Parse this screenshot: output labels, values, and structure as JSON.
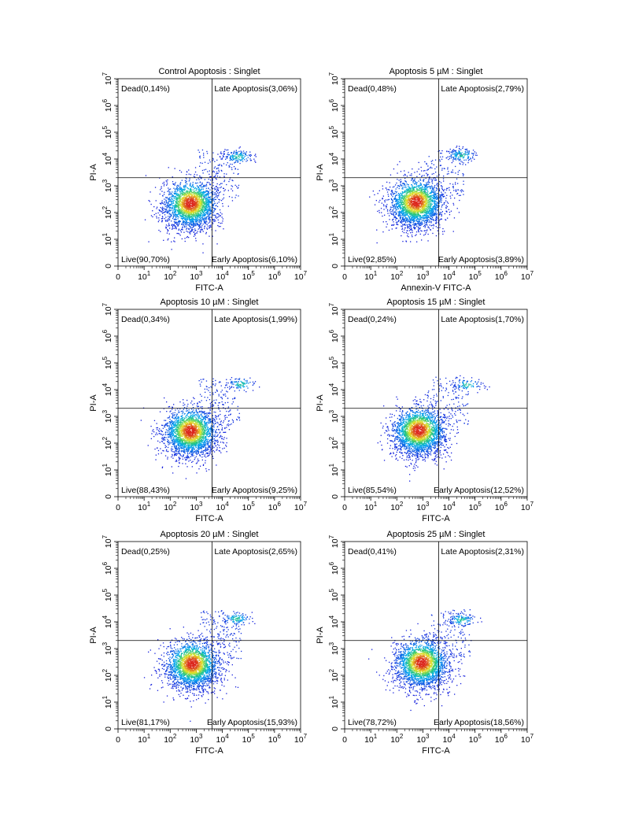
{
  "chart_data": [
    {
      "type": "scatter",
      "title": "Control Apoptosis : Singlet",
      "xlabel": "FITC-A",
      "ylabel": "PI-A",
      "xscale": "biexponential (log)",
      "yscale": "biexponential (log)",
      "xlim": [
        0,
        10000000
      ],
      "ylim": [
        0,
        10000000
      ],
      "x_ticks": [
        "0",
        "10",
        "10",
        "10",
        "10",
        "10",
        "10",
        "10"
      ],
      "x_tick_exponents": [
        "",
        "1",
        "2",
        "3",
        "4",
        "5",
        "6",
        "7"
      ],
      "y_ticks": [
        "0",
        "10",
        "10",
        "10",
        "10",
        "10",
        "10",
        "10"
      ],
      "y_tick_exponents": [
        "",
        "1",
        "2",
        "3",
        "4",
        "5",
        "6",
        "7"
      ],
      "gate": {
        "x": 4000,
        "y": 2000
      },
      "quadrants": {
        "top_left": "Dead(0,14%)",
        "top_right": "Late Apoptosis(3,06%)",
        "bottom_left": "Live(90,70%)",
        "bottom_right": "Early Apoptosis(6,10%)"
      },
      "population": {
        "live_center": [
          600,
          220
        ],
        "late_center": [
          40000,
          12000
        ],
        "late_fraction": 0.06
      },
      "colormap": "density: blue-cyan-green-yellow-red"
    },
    {
      "type": "scatter",
      "title": "Apoptosis 5 µM : Singlet",
      "xlabel": "Annexin-V FITC-A",
      "ylabel": "PI-A",
      "xscale": "biexponential (log)",
      "yscale": "biexponential (log)",
      "xlim": [
        0,
        10000000
      ],
      "ylim": [
        0,
        10000000
      ],
      "x_ticks": [
        "0",
        "10",
        "10",
        "10",
        "10",
        "10",
        "10",
        "10"
      ],
      "x_tick_exponents": [
        "",
        "1",
        "2",
        "3",
        "4",
        "5",
        "6",
        "7"
      ],
      "y_ticks": [
        "0",
        "10",
        "10",
        "10",
        "10",
        "10",
        "10",
        "10"
      ],
      "y_tick_exponents": [
        "",
        "1",
        "2",
        "3",
        "4",
        "5",
        "6",
        "7"
      ],
      "gate": {
        "x": 4000,
        "y": 2000
      },
      "quadrants": {
        "top_left": "Dead(0,48%)",
        "top_right": "Late Apoptosis(2,79%)",
        "bottom_left": "Live(92,85%)",
        "bottom_right": "Early Apoptosis(3,89%)"
      },
      "population": {
        "live_center": [
          550,
          250
        ],
        "late_center": [
          30000,
          14000
        ],
        "late_fraction": 0.05
      },
      "colormap": "density: blue-cyan-green-yellow-red"
    },
    {
      "type": "scatter",
      "title": "Apoptosis 10 µM : Singlet",
      "xlabel": "FITC-A",
      "ylabel": "PI-A",
      "xscale": "biexponential (log)",
      "yscale": "biexponential (log)",
      "xlim": [
        0,
        10000000
      ],
      "ylim": [
        0,
        10000000
      ],
      "x_ticks": [
        "0",
        "10",
        "10",
        "10",
        "10",
        "10",
        "10",
        "10"
      ],
      "x_tick_exponents": [
        "",
        "1",
        "2",
        "3",
        "4",
        "5",
        "6",
        "7"
      ],
      "y_ticks": [
        "0",
        "10",
        "10",
        "10",
        "10",
        "10",
        "10",
        "10"
      ],
      "y_tick_exponents": [
        "",
        "1",
        "2",
        "3",
        "4",
        "5",
        "6",
        "7"
      ],
      "gate": {
        "x": 4000,
        "y": 2000
      },
      "quadrants": {
        "top_left": "Dead(0,34%)",
        "top_right": "Late Apoptosis(1,99%)",
        "bottom_left": "Live(88,43%)",
        "bottom_right": "Early Apoptosis(9,25%)"
      },
      "population": {
        "live_center": [
          600,
          280
        ],
        "late_center": [
          50000,
          16000
        ],
        "late_fraction": 0.04
      },
      "colormap": "density: blue-cyan-green-yellow-red"
    },
    {
      "type": "scatter",
      "title": "Apoptosis 15 µM : Singlet",
      "xlabel": "FITC-A",
      "ylabel": "PI-A",
      "xscale": "biexponential (log)",
      "yscale": "biexponential (log)",
      "xlim": [
        0,
        10000000
      ],
      "ylim": [
        0,
        10000000
      ],
      "x_ticks": [
        "0",
        "10",
        "10",
        "10",
        "10",
        "10",
        "10",
        "10"
      ],
      "x_tick_exponents": [
        "",
        "1",
        "2",
        "3",
        "4",
        "5",
        "6",
        "7"
      ],
      "y_ticks": [
        "0",
        "10",
        "10",
        "10",
        "10",
        "10",
        "10",
        "10"
      ],
      "y_tick_exponents": [
        "",
        "1",
        "2",
        "3",
        "4",
        "5",
        "6",
        "7"
      ],
      "gate": {
        "x": 4000,
        "y": 2000
      },
      "quadrants": {
        "top_left": "Dead(0,24%)",
        "top_right": "Late Apoptosis(1,70%)",
        "bottom_left": "Live(85,54%)",
        "bottom_right": "Early Apoptosis(12,52%)"
      },
      "population": {
        "live_center": [
          700,
          300
        ],
        "late_center": [
          50000,
          15000
        ],
        "late_fraction": 0.035
      },
      "colormap": "density: blue-cyan-green-yellow-red"
    },
    {
      "type": "scatter",
      "title": "Apoptosis 20 µM : Singlet",
      "xlabel": "FITC-A",
      "ylabel": "PI-A",
      "xscale": "biexponential (log)",
      "yscale": "biexponential (log)",
      "xlim": [
        0,
        10000000
      ],
      "ylim": [
        0,
        10000000
      ],
      "x_ticks": [
        "0",
        "10",
        "10",
        "10",
        "10",
        "10",
        "10",
        "10"
      ],
      "x_tick_exponents": [
        "",
        "1",
        "2",
        "3",
        "4",
        "5",
        "6",
        "7"
      ],
      "y_ticks": [
        "0",
        "10",
        "10",
        "10",
        "10",
        "10",
        "10",
        "10"
      ],
      "y_tick_exponents": [
        "",
        "1",
        "2",
        "3",
        "4",
        "5",
        "6",
        "7"
      ],
      "gate": {
        "x": 4000,
        "y": 2000
      },
      "quadrants": {
        "top_left": "Dead(0,25%)",
        "top_right": "Late Apoptosis(2,65%)",
        "bottom_left": "Live(81,17%)",
        "bottom_right": "Early Apoptosis(15,93%)"
      },
      "population": {
        "live_center": [
          700,
          270
        ],
        "late_center": [
          35000,
          13000
        ],
        "late_fraction": 0.045
      },
      "colormap": "density: blue-cyan-green-yellow-red"
    },
    {
      "type": "scatter",
      "title": "Apoptosis 25 µM : Singlet",
      "xlabel": "FITC-A",
      "ylabel": "PI-A",
      "xscale": "biexponential (log)",
      "yscale": "biexponential (log)",
      "xlim": [
        0,
        10000000
      ],
      "ylim": [
        0,
        10000000
      ],
      "x_ticks": [
        "0",
        "10",
        "10",
        "10",
        "10",
        "10",
        "10",
        "10"
      ],
      "x_tick_exponents": [
        "",
        "1",
        "2",
        "3",
        "4",
        "5",
        "6",
        "7"
      ],
      "y_ticks": [
        "0",
        "10",
        "10",
        "10",
        "10",
        "10",
        "10",
        "10"
      ],
      "y_tick_exponents": [
        "",
        "1",
        "2",
        "3",
        "4",
        "5",
        "6",
        "7"
      ],
      "gate": {
        "x": 4000,
        "y": 2000
      },
      "quadrants": {
        "top_left": "Dead(0,41%)",
        "top_right": "Late Apoptosis(2,31%)",
        "bottom_left": "Live(78,72%)",
        "bottom_right": "Early Apoptosis(18,56%)"
      },
      "population": {
        "live_center": [
          900,
          300
        ],
        "late_center": [
          30000,
          12000
        ],
        "late_fraction": 0.04
      },
      "colormap": "density: blue-cyan-green-yellow-red"
    }
  ]
}
